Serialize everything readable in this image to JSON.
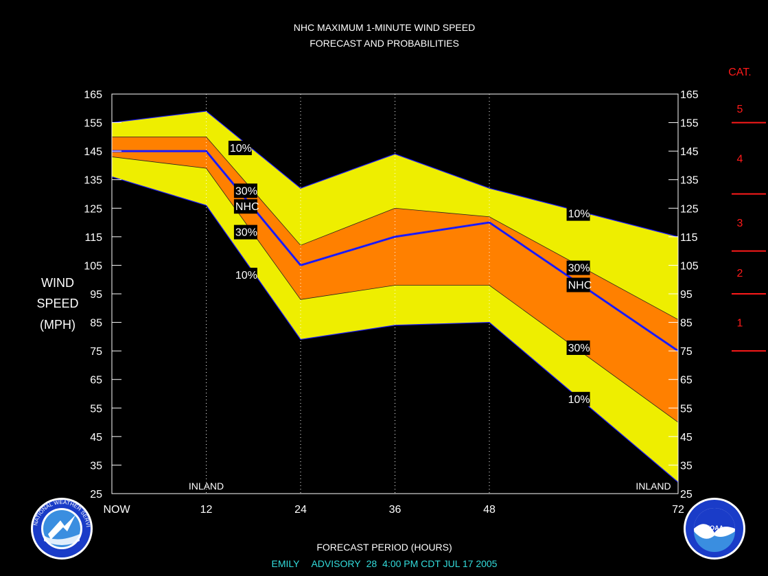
{
  "chart_data": {
    "type": "area",
    "title": "NHC MAXIMUM 1-MINUTE WIND SPEED",
    "subtitle": "FORECAST AND PROBABILITIES",
    "xlabel": "FORECAST PERIOD (HOURS)",
    "ylabel": [
      "WIND",
      "SPEED",
      "(MPH)"
    ],
    "x": [
      0,
      12,
      24,
      36,
      48,
      72
    ],
    "x_tick_labels": [
      "NOW",
      "12",
      "24",
      "36",
      "48",
      "72"
    ],
    "xlim": [
      0,
      72
    ],
    "ylim": [
      25,
      165
    ],
    "y_ticks": [
      25,
      35,
      45,
      55,
      65,
      75,
      85,
      95,
      105,
      115,
      125,
      135,
      145,
      155,
      165
    ],
    "series": [
      {
        "name": "10%",
        "values": [
          155,
          159,
          132,
          144,
          132,
          115
        ]
      },
      {
        "name": "30%",
        "values": [
          150,
          150,
          112,
          125,
          122,
          86
        ]
      },
      {
        "name": "NHC",
        "values": [
          145,
          145,
          105,
          115,
          120,
          75
        ]
      },
      {
        "name": "30%",
        "values": [
          143,
          139,
          93,
          98,
          98,
          50
        ]
      },
      {
        "name": "10%",
        "values": [
          136,
          126,
          79,
          84,
          85,
          29
        ]
      }
    ],
    "band_colors": {
      "outer": "#eeee00",
      "inner": "#ff8000",
      "forecast_line": "#1a1aff"
    },
    "inland_markers": [
      {
        "x": 12,
        "label": "INLAND"
      },
      {
        "x": 72,
        "label": "INLAND"
      }
    ],
    "annotations": [
      {
        "text": "10%",
        "x": 15,
        "y": 146
      },
      {
        "text": "30%",
        "x": 15.7,
        "y": 131
      },
      {
        "text": "NHC",
        "x": 15.7,
        "y": 125.5
      },
      {
        "text": "30%",
        "x": 15.7,
        "y": 116.5
      },
      {
        "text": "10%",
        "x": 15.7,
        "y": 101.5
      },
      {
        "text": "10%",
        "x": 58,
        "y": 123
      },
      {
        "text": "30%",
        "x": 58,
        "y": 104
      },
      {
        "text": "NHC",
        "x": 58,
        "y": 98
      },
      {
        "text": "30%",
        "x": 58,
        "y": 76
      },
      {
        "text": "10%",
        "x": 58,
        "y": 58
      }
    ],
    "category_scale": {
      "title": "CAT.",
      "labels": [
        "5",
        "4",
        "3",
        "2",
        "1"
      ],
      "boundaries_mph": [
        155,
        130,
        110,
        95,
        75
      ]
    },
    "grid": "vertical dotted at 12, 24, 36, 48"
  },
  "footer": {
    "storm": "EMILY",
    "advisory_label": "ADVISORY",
    "advisory_number": "28",
    "issued": "4:00  PM  CDT  JUL  17  2005"
  },
  "logos": {
    "left": "national-weather-service-logo",
    "right": "noaa-logo",
    "left_text": "NATIONAL WEATHER SERVICE",
    "right_text": "NOAA"
  }
}
